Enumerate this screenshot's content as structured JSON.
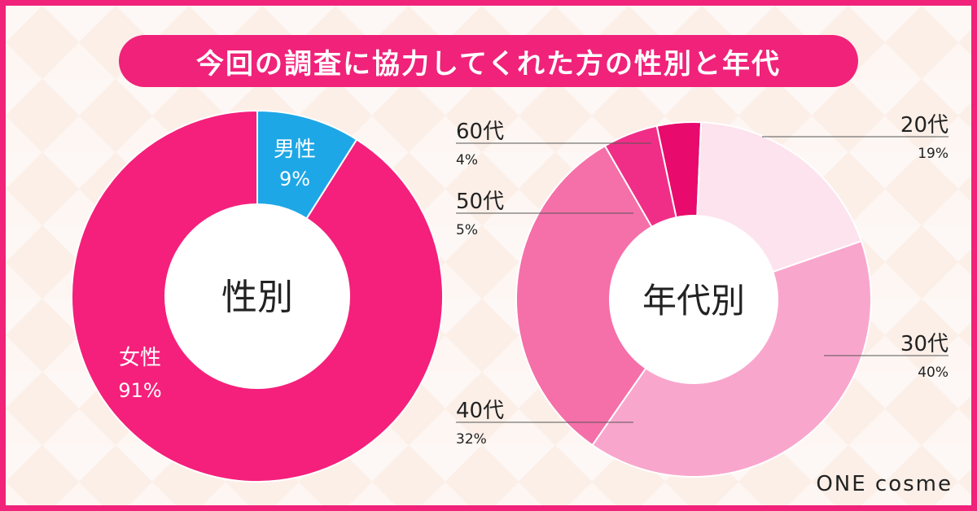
{
  "title": "今回の調査に協力してくれた方の性別と年代",
  "logo": "ONE cosme",
  "chart_data": [
    {
      "type": "pie",
      "center_label": "性別",
      "slices": [
        {
          "label": "男性",
          "percent_text": "9%",
          "value": 9,
          "color": "#1ea7e6"
        },
        {
          "label": "女性",
          "percent_text": "91%",
          "value": 91,
          "color": "#f5207b"
        }
      ]
    },
    {
      "type": "pie",
      "center_label": "年代別",
      "slices": [
        {
          "label": "20代",
          "percent_text": "19%",
          "value": 19,
          "color": "#fde3ee"
        },
        {
          "label": "30代",
          "percent_text": "40%",
          "value": 40,
          "color": "#f9a6cd"
        },
        {
          "label": "40代",
          "percent_text": "32%",
          "value": 32,
          "color": "#f56fa8"
        },
        {
          "label": "50代",
          "percent_text": "5%",
          "value": 5,
          "color": "#f12e87"
        },
        {
          "label": "60代",
          "percent_text": "4%",
          "value": 4,
          "color": "#e80a6c"
        }
      ]
    }
  ]
}
